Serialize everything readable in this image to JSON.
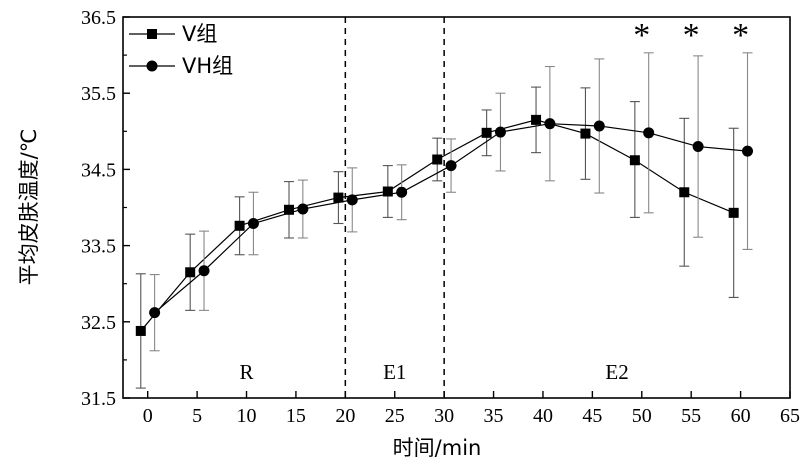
{
  "chart_data": {
    "type": "line",
    "title": "",
    "xlabel": "时间/min",
    "ylabel": "平均皮肤温度/℃",
    "xlim": [
      -2.5,
      65
    ],
    "ylim": [
      31.5,
      36.5
    ],
    "x_ticks": [
      "0",
      "5",
      "10",
      "15",
      "20",
      "25",
      "30",
      "35",
      "40",
      "45",
      "50",
      "55",
      "60",
      "65"
    ],
    "y_ticks": [
      "31.5",
      "32.5",
      "33.5",
      "34.5",
      "35.5",
      "36.5"
    ],
    "legend_position": "top-left",
    "series": [
      {
        "name": "V组",
        "marker": "square",
        "x": [
          -0.7,
          4.3,
          9.3,
          14.3,
          19.3,
          24.3,
          29.3,
          34.3,
          39.3,
          44.3,
          49.3,
          54.3,
          59.3
        ],
        "y": [
          32.38,
          33.15,
          33.76,
          33.97,
          34.13,
          34.21,
          34.63,
          34.98,
          35.15,
          34.97,
          34.62,
          34.2,
          33.93
        ],
        "error_low": [
          31.63,
          32.65,
          33.38,
          33.6,
          33.79,
          33.87,
          34.35,
          34.68,
          34.72,
          34.37,
          33.87,
          33.23,
          32.82
        ],
        "error_high": [
          33.13,
          33.65,
          34.14,
          34.34,
          34.47,
          34.55,
          34.91,
          35.28,
          35.58,
          35.57,
          35.39,
          35.17,
          35.04
        ]
      },
      {
        "name": "VH组",
        "marker": "circle",
        "x": [
          0.7,
          5.7,
          10.7,
          15.7,
          20.7,
          25.7,
          30.7,
          35.7,
          40.7,
          45.7,
          50.7,
          55.7,
          60.7
        ],
        "y": [
          32.62,
          33.17,
          33.79,
          33.98,
          34.1,
          34.2,
          34.55,
          34.99,
          35.1,
          35.07,
          34.98,
          34.8,
          34.74
        ],
        "error_low": [
          32.12,
          32.65,
          33.38,
          33.6,
          33.68,
          33.84,
          34.2,
          34.48,
          34.35,
          34.19,
          33.93,
          33.61,
          33.45
        ],
        "error_high": [
          33.12,
          33.69,
          34.2,
          34.36,
          34.52,
          34.56,
          34.9,
          35.5,
          35.85,
          35.95,
          36.03,
          35.99,
          36.03
        ]
      }
    ],
    "reference_lines": [
      {
        "x": 20,
        "style": "dashed"
      },
      {
        "x": 30,
        "style": "dashed"
      }
    ],
    "phase_labels": [
      {
        "text": "R",
        "x": 10
      },
      {
        "text": "E1",
        "x": 25
      },
      {
        "text": "E2",
        "x": 47.5
      }
    ],
    "phase_label_y": 31.75,
    "significance_marks": [
      {
        "text": "*",
        "x": 50
      },
      {
        "text": "*",
        "x": 55
      },
      {
        "text": "*",
        "x": 60
      }
    ],
    "significance_y": 36.3
  }
}
